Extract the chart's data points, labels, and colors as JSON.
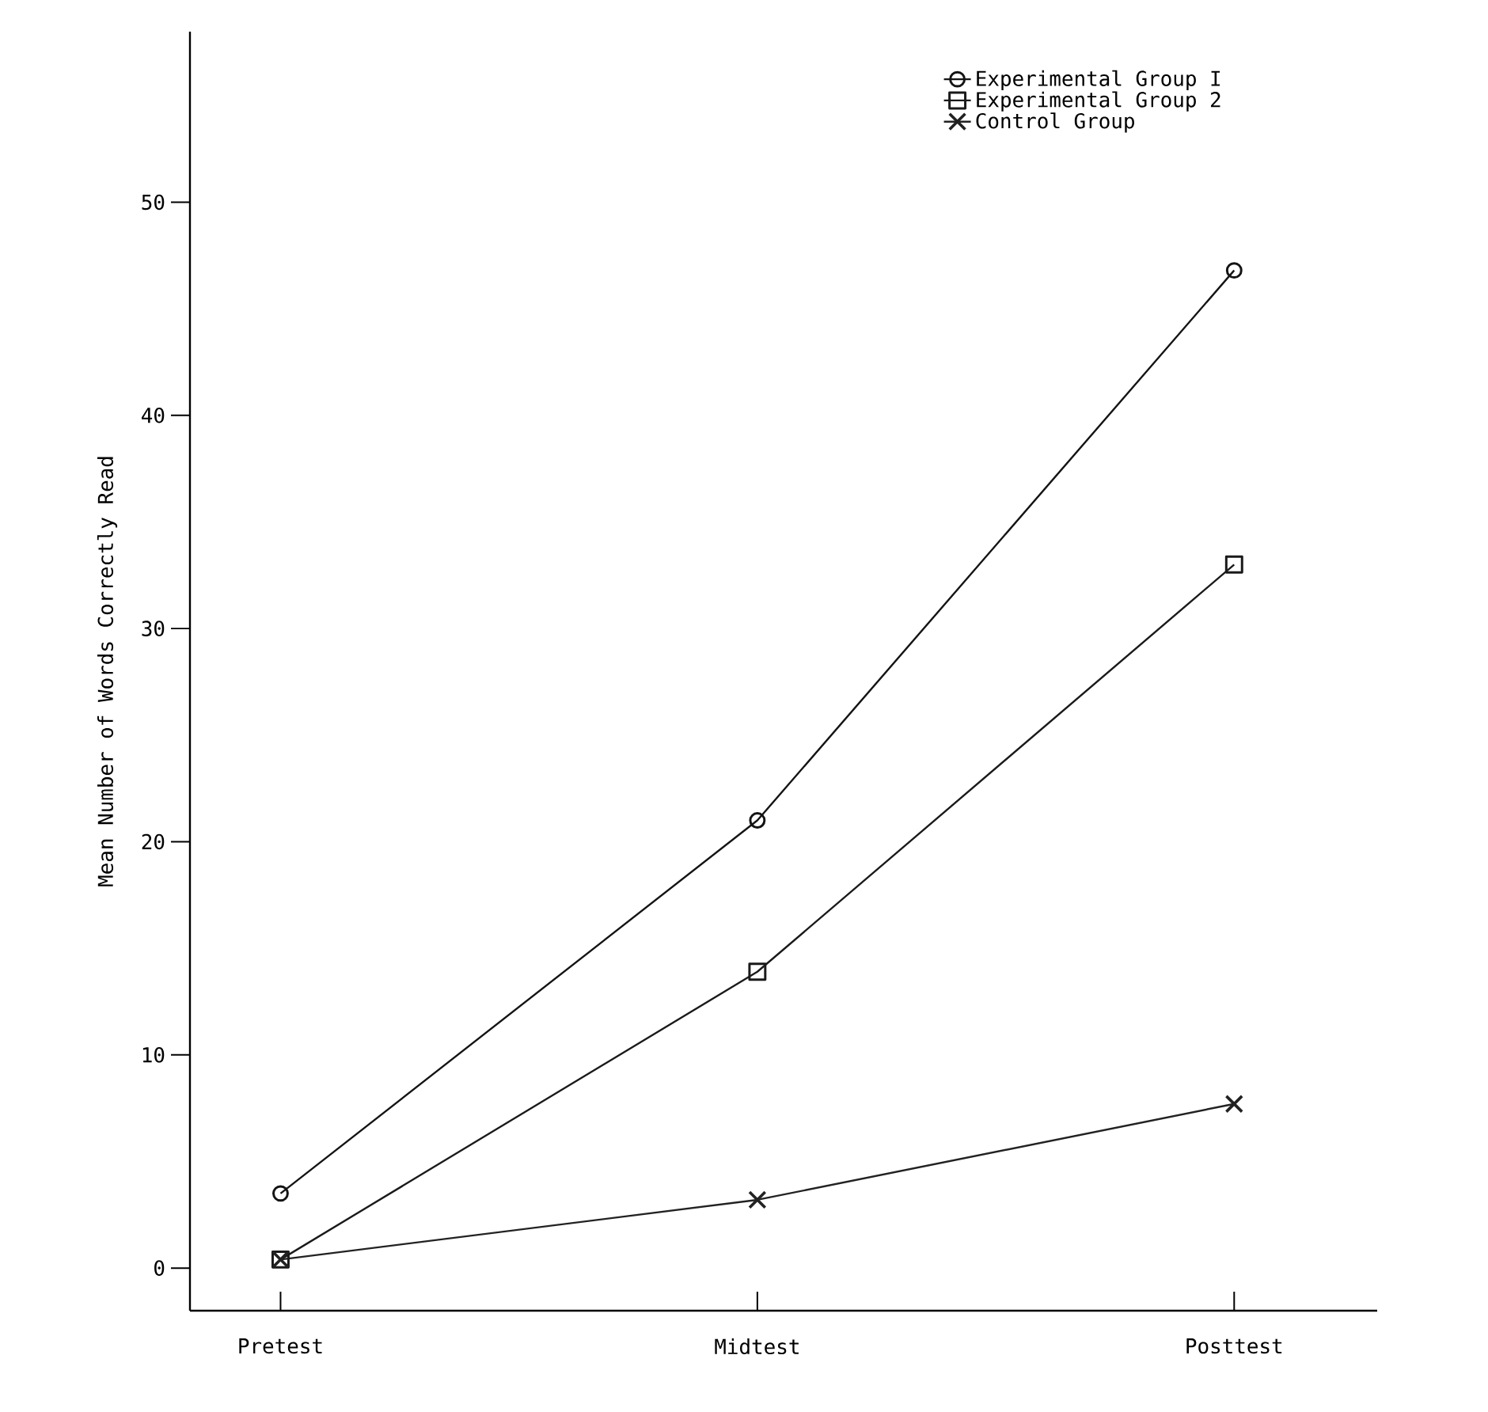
{
  "chart_data": {
    "type": "line",
    "ylabel": "Mean Number of Words Correctly Read",
    "categories": [
      "Pretest",
      "Midtest",
      "Posttest"
    ],
    "series": [
      {
        "name": "Experimental Group I",
        "color": "#141414",
        "marker": "circle",
        "values": [
          3.5,
          21,
          46.8
        ]
      },
      {
        "name": "Experimental Group 2",
        "color": "#1a1a1a",
        "marker": "square",
        "values": [
          0.4,
          13.9,
          33.0
        ]
      },
      {
        "name": "Control Group",
        "color": "#222222",
        "marker": "cross",
        "values": [
          0.4,
          3.2,
          7.7
        ]
      }
    ],
    "ylim": [
      -2,
      58
    ],
    "yticks": [
      0,
      10,
      20,
      30,
      40,
      50
    ],
    "legend": "top right",
    "line_style": "solid"
  }
}
